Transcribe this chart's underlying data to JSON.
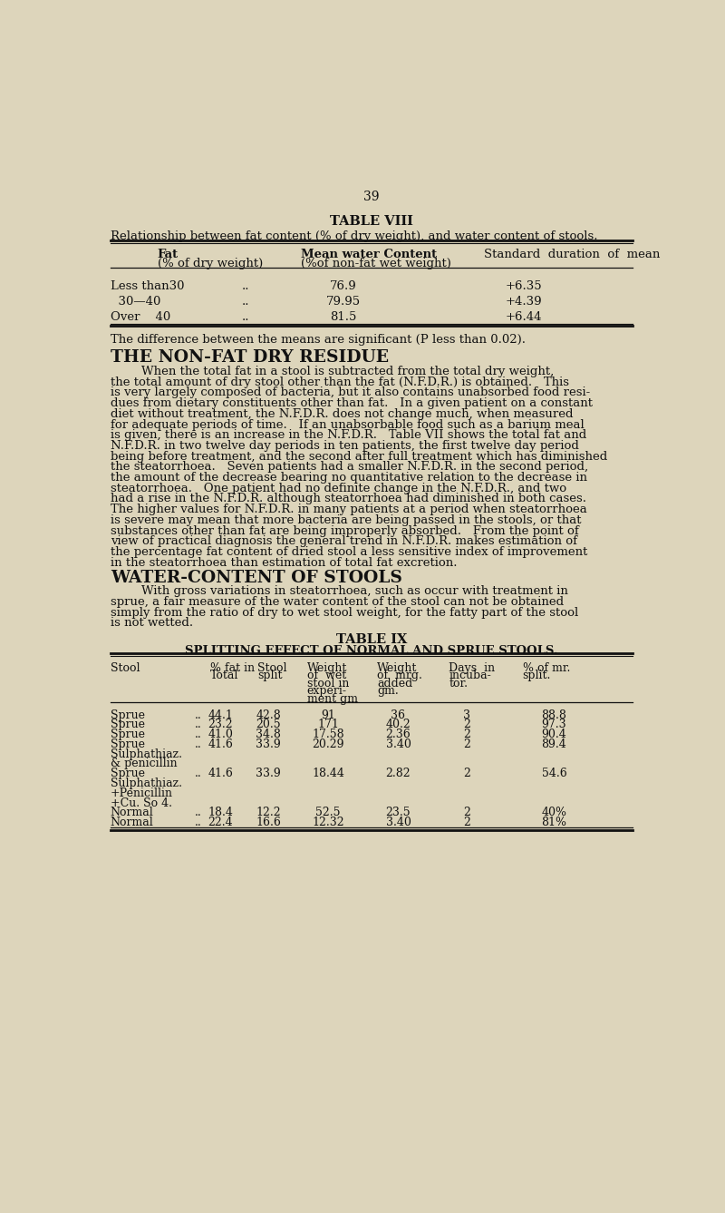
{
  "bg_color": "#ddd5bb",
  "text_color": "#111111",
  "page_number": "39",
  "table8_title": "TABLE VIII",
  "table8_subtitle": "Relationship between fat content (% of dry weight), and water content of stools.",
  "table8_rows": [
    [
      "Less than30",
      "..",
      "76.9",
      "+6.35"
    ],
    [
      "  30—40",
      "..",
      "79.95",
      "+4.39"
    ],
    [
      "Over    40",
      "..",
      "81.5",
      "+6.44"
    ]
  ],
  "table8_footnote": "The difference between the means are significant (P less than 0.02).",
  "section1_title": "THE NON-FAT DRY RESIDUE",
  "section1_lines": [
    "        When the total fat in a stool is subtracted from the total dry weight,",
    "the total amount of dry stool other than the fat (N.F.D.R.) is obtained.   This",
    "is very largely composed of bacteria, but it also contains unabsorbed food resi-",
    "dues from dietary constituents other than fat.   In a given patient on a constant",
    "diet without treatment, the N.F.D.R. does not change much, when measured",
    "for adequate periods of time.   If an unabsorbable food such as a barium meal",
    "is given, there is an increase in the N.F.D.R.   Table VII shows the total fat and",
    "N.F.D.R. in two twelve day periods in ten patients, the first twelve day period",
    "being before treatment, and the second after full treatment which has diminished",
    "the steatorrhoea.   Seven patients had a smaller N.F.D.R. in the second period,",
    "the amount of the decrease bearing no quantitative relation to the decrease in",
    "steatorrhoea.   One patient had no definite change in the N.F.D.R., and two",
    "had a rise in the N.F.D.R. although steatorrhoea had diminished in both cases.",
    "The higher values for N.F.D.R. in many patients at a period when steatorrhoea",
    "is severe may mean that more bacteria are being passed in the stools, or that",
    "substances other than fat are being improperly absorbed.   From the point of",
    "view of practical diagnosis the general trend in N.F.D.R. makes estimation of",
    "the percentage fat content of dried stool a less sensitive index of improvement",
    "in the steatorrhoea than estimation of total fat excretion."
  ],
  "section2_title": "WATER-CONTENT OF STOOLS",
  "section2_lines": [
    "        With gross variations in steatorrhoea, such as occur with treatment in",
    "sprue, a fair measure of the water content of the stool can not be obtained",
    "simply from the ratio of dry to wet stool weight, for the fatty part of the stool",
    "is not wetted."
  ],
  "table9_title": "TABLE IX",
  "table9_subtitle": "SPLITTING EFFECT OF NORMAL AND SPRUE STOOLS.",
  "table9_rows": [
    [
      "Sprue",
      "..",
      "44.1",
      "42.8",
      "91",
      "36",
      "3",
      "88.8"
    ],
    [
      "Sprue",
      "..",
      "23.2",
      "20.5",
      "171",
      "40.2",
      "2",
      "97.3"
    ],
    [
      "Sprue",
      "..",
      "41.0",
      "34.8",
      "17.58",
      "2.36",
      "2",
      "90.4"
    ],
    [
      "Sprue",
      "..",
      "41.6",
      "33.9",
      "20.29",
      "3.40",
      "2",
      "89.4"
    ],
    [
      "Sulphathiaz.",
      "",
      "",
      "",
      "",
      "",
      "",
      ""
    ],
    [
      "& penicillin",
      "",
      "",
      "",
      "",
      "",
      "",
      ""
    ],
    [
      "Sprue",
      "..",
      "41.6",
      "33.9",
      "18.44",
      "2.82",
      "2",
      "54.6"
    ],
    [
      "Sulphathiaz.",
      "",
      "",
      "",
      "",
      "",
      "",
      ""
    ],
    [
      "+Penicillin",
      "",
      "",
      "",
      "",
      "",
      "",
      ""
    ],
    [
      "+Cu. So 4.",
      "",
      "",
      "",
      "",
      "",
      "",
      ""
    ],
    [
      "Normal",
      "..",
      "18.4",
      "12.2",
      "52.5",
      "23.5",
      "2",
      "40%"
    ],
    [
      "Normal",
      "..",
      "22.4",
      "16.6",
      "12.32",
      "3.40",
      "2",
      "81%"
    ]
  ]
}
